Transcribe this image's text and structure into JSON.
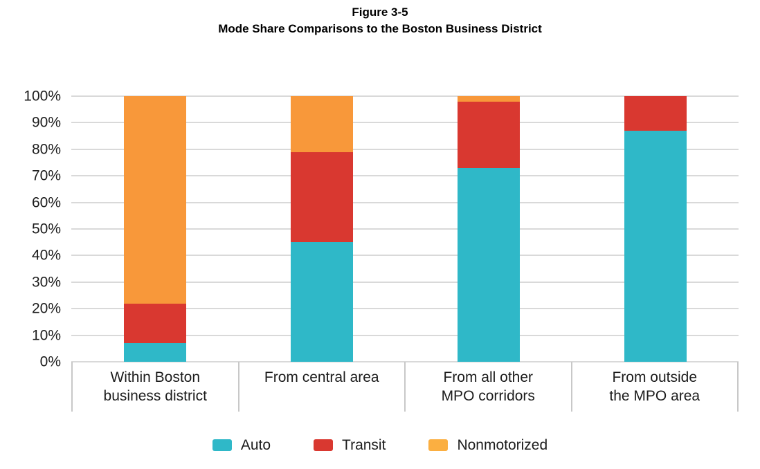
{
  "title": {
    "line1": "Figure 3-5",
    "line2": "Mode Share Comparisons to the Boston Business District"
  },
  "chart_data": {
    "type": "bar",
    "stacked": true,
    "title": "Figure 3-5 Mode Share Comparisons to the Boston Business District",
    "categories": [
      "Within Boston business district",
      "From central area",
      "From all other MPO corridors",
      "From outside the MPO area"
    ],
    "category_label_lines": [
      [
        "Within Boston",
        "business district"
      ],
      [
        "From central area"
      ],
      [
        "From all other",
        "MPO corridors"
      ],
      [
        "From outside",
        "the MPO area"
      ]
    ],
    "series": [
      {
        "name": "Auto",
        "color": "#2fb8c8",
        "legend_color": "#2fb8c8",
        "values": [
          7,
          45,
          73,
          87
        ]
      },
      {
        "name": "Transit",
        "color": "#d93830",
        "legend_color": "#d93830",
        "values": [
          15,
          34,
          25,
          13
        ]
      },
      {
        "name": "Nonmotorized",
        "color": "#f8983a",
        "legend_color": "#fbaf41",
        "values": [
          78,
          21,
          2,
          0
        ]
      }
    ],
    "xlabel": "",
    "ylabel": "",
    "ylim": [
      0,
      100
    ],
    "y_ticks": [
      "0%",
      "10%",
      "20%",
      "30%",
      "40%",
      "50%",
      "60%",
      "70%",
      "80%",
      "90%",
      "100%"
    ],
    "grid": true,
    "legend_position": "bottom"
  },
  "colors": {
    "gridline": "#d9d9d9",
    "axis_line": "#d9d9d9",
    "category_divider": "#c8c8c8",
    "text": "#1c1c1c",
    "title_text": "#000000",
    "background": "#ffffff"
  }
}
